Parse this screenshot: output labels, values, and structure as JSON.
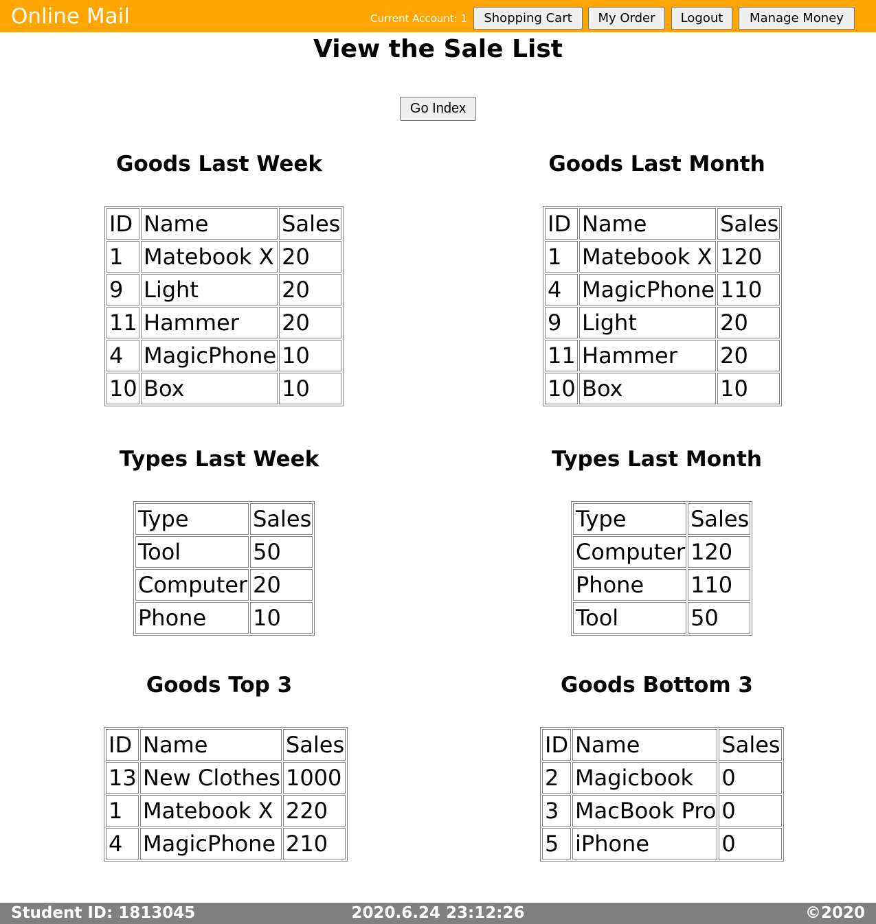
{
  "header": {
    "brand": "Online Mail",
    "account_label": "Current Account: 1",
    "buttons": {
      "shopping_cart": "Shopping Cart",
      "my_order": "My Order",
      "logout": "Logout",
      "manage_money": "Manage Money"
    },
    "background_color": "#ffa500"
  },
  "page_title": "View the Sale List",
  "go_index_label": "Go Index",
  "sections": {
    "goods_last_week": {
      "title": "Goods Last Week",
      "columns": [
        "ID",
        "Name",
        "Sales"
      ],
      "rows": [
        [
          "1",
          "Matebook X",
          "20"
        ],
        [
          "9",
          "Light",
          "20"
        ],
        [
          "11",
          "Hammer",
          "20"
        ],
        [
          "4",
          "MagicPhone",
          "10"
        ],
        [
          "10",
          "Box",
          "10"
        ]
      ]
    },
    "goods_last_month": {
      "title": "Goods Last Month",
      "columns": [
        "ID",
        "Name",
        "Sales"
      ],
      "rows": [
        [
          "1",
          "Matebook X",
          "120"
        ],
        [
          "4",
          "MagicPhone",
          "110"
        ],
        [
          "9",
          "Light",
          "20"
        ],
        [
          "11",
          "Hammer",
          "20"
        ],
        [
          "10",
          "Box",
          "10"
        ]
      ]
    },
    "types_last_week": {
      "title": "Types Last Week",
      "columns": [
        "Type",
        "Sales"
      ],
      "rows": [
        [
          "Tool",
          "50"
        ],
        [
          "Computer",
          "20"
        ],
        [
          "Phone",
          "10"
        ]
      ]
    },
    "types_last_month": {
      "title": "Types Last Month",
      "columns": [
        "Type",
        "Sales"
      ],
      "rows": [
        [
          "Computer",
          "120"
        ],
        [
          "Phone",
          "110"
        ],
        [
          "Tool",
          "50"
        ]
      ]
    },
    "goods_top3": {
      "title": "Goods Top 3",
      "columns": [
        "ID",
        "Name",
        "Sales"
      ],
      "rows": [
        [
          "13",
          "New Clothes",
          "1000"
        ],
        [
          "1",
          "Matebook X",
          "220"
        ],
        [
          "4",
          "MagicPhone",
          "210"
        ]
      ]
    },
    "goods_bottom3": {
      "title": "Goods Bottom 3",
      "columns": [
        "ID",
        "Name",
        "Sales"
      ],
      "rows": [
        [
          "2",
          "Magicbook",
          "0"
        ],
        [
          "3",
          "MacBook Pro",
          "0"
        ],
        [
          "5",
          "iPhone",
          "0"
        ]
      ]
    }
  },
  "footer": {
    "student_id": "Student ID: 1813045",
    "datetime": "2020.6.24 23:12:26",
    "copyright": "©2020",
    "background_color": "#808080"
  }
}
